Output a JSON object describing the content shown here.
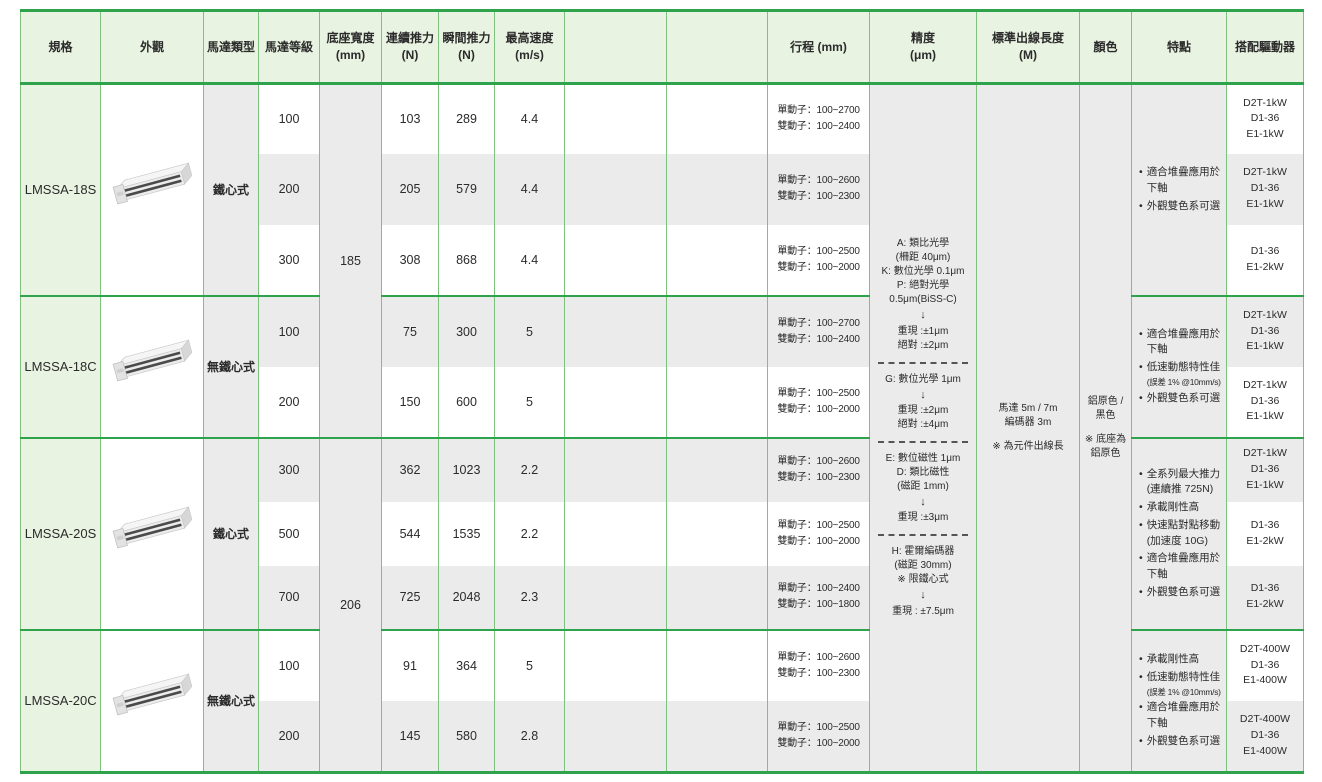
{
  "colors": {
    "header_bg": "#e9f3e2",
    "spec_bg": "#e9f3e2",
    "stripe_gray": "#ebebeb",
    "stripe_white": "#ffffff",
    "border_light_green": "#7fc27d",
    "border_strong_green": "#2ea34b",
    "text": "#2b2b2b"
  },
  "headers": [
    {
      "label": "規格",
      "sub": ""
    },
    {
      "label": "外觀",
      "sub": ""
    },
    {
      "label": "馬達類型",
      "sub": ""
    },
    {
      "label": "馬達等級",
      "sub": ""
    },
    {
      "label": "底座寬度",
      "sub": "(mm)"
    },
    {
      "label": "連續推力",
      "sub": "(N)"
    },
    {
      "label": "瞬間推力",
      "sub": "(N)"
    },
    {
      "label": "最高速度",
      "sub": "(m/s)"
    },
    {
      "label": "",
      "sub": ""
    },
    {
      "label": "",
      "sub": ""
    },
    {
      "label": "行程 (mm)",
      "sub": ""
    },
    {
      "label": "精度",
      "sub": "(μm)"
    },
    {
      "label": "標準出線長度",
      "sub": "(M)"
    },
    {
      "label": "顏色",
      "sub": ""
    },
    {
      "label": "特點",
      "sub": ""
    },
    {
      "label": "搭配驅動器",
      "sub": ""
    }
  ],
  "base_width_spans": [
    {
      "value": "185",
      "rows": 5
    },
    {
      "value": "206",
      "rows": 5
    }
  ],
  "precision": {
    "blocks": [
      {
        "lines": [
          "A: 類比光學",
          "(柵距 40μm)",
          "K: 數位光學 0.1μm",
          "P: 絕對光學",
          "0.5μm(BiSS-C)",
          "↓",
          "重現 :±1μm",
          "絕對 :±2μm"
        ]
      },
      {
        "lines": [
          "G: 數位光學 1μm",
          "↓",
          "重現 :±2μm",
          "絕對 :±4μm"
        ]
      },
      {
        "lines": [
          "E: 數位磁性 1μm",
          "D: 類比磁性",
          "(磁距 1mm)",
          "↓",
          "重現 :±3μm"
        ]
      },
      {
        "lines": [
          "H: 霍爾編碼器",
          "(磁距 30mm)",
          "※ 限鐵心式",
          "↓",
          "重現 : ±7.5μm"
        ]
      }
    ]
  },
  "cable_length": {
    "lines": [
      "馬達 5m / 7m",
      "編碼器 3m"
    ],
    "note": "※ 為元件出線長"
  },
  "color_column": {
    "lines": [
      "鋁原色 /",
      "黑色"
    ],
    "note": "※ 底座為鋁原色"
  },
  "groups": [
    {
      "model": "LMSSA-18S",
      "motor_type": "鐵心式",
      "appearance": "linear-stage-product-photo",
      "features": [
        {
          "text": "適合堆疊應用於下軸"
        },
        {
          "text": "外觀雙色系可選"
        }
      ],
      "rows": [
        {
          "grade": "100",
          "continuous": "103",
          "instant": "289",
          "speed": "4.4",
          "stroke": [
            "單動子：100~2700",
            "雙動子：100~2400"
          ],
          "drivers": [
            "D2T-1kW",
            "D1-36",
            "E1-1kW"
          ]
        },
        {
          "grade": "200",
          "continuous": "205",
          "instant": "579",
          "speed": "4.4",
          "stroke": [
            "單動子：100~2600",
            "雙動子：100~2300"
          ],
          "drivers": [
            "D2T-1kW",
            "D1-36",
            "E1-1kW"
          ]
        },
        {
          "grade": "300",
          "continuous": "308",
          "instant": "868",
          "speed": "4.4",
          "stroke": [
            "單動子：100~2500",
            "雙動子：100~2000"
          ],
          "drivers": [
            "D1-36",
            "E1-2kW"
          ]
        }
      ]
    },
    {
      "model": "LMSSA-18C",
      "motor_type": "無鐵心式",
      "appearance": "linear-stage-product-photo",
      "features": [
        {
          "text": "適合堆疊應用於下軸"
        },
        {
          "text": "低速動態特性佳",
          "note": "(誤差 1% @10mm/s)"
        },
        {
          "text": "外觀雙色系可選"
        }
      ],
      "rows": [
        {
          "grade": "100",
          "continuous": "75",
          "instant": "300",
          "speed": "5",
          "stroke": [
            "單動子：100~2700",
            "雙動子：100~2400"
          ],
          "drivers": [
            "D2T-1kW",
            "D1-36",
            "E1-1kW"
          ]
        },
        {
          "grade": "200",
          "continuous": "150",
          "instant": "600",
          "speed": "5",
          "stroke": [
            "單動子：100~2500",
            "雙動子：100~2000"
          ],
          "drivers": [
            "D2T-1kW",
            "D1-36",
            "E1-1kW"
          ]
        }
      ]
    },
    {
      "model": "LMSSA-20S",
      "motor_type": "鐵心式",
      "appearance": "linear-stage-product-photo",
      "features": [
        {
          "text": "全系列最大推力 (連續推 725N)"
        },
        {
          "text": "承載剛性高"
        },
        {
          "text": "快速點對點移動 (加速度 10G)"
        },
        {
          "text": "適合堆疊應用於下軸"
        },
        {
          "text": "外觀雙色系可選"
        }
      ],
      "rows": [
        {
          "grade": "300",
          "continuous": "362",
          "instant": "1023",
          "speed": "2.2",
          "stroke": [
            "單動子：100~2600",
            "雙動子：100~2300"
          ],
          "drivers": [
            "D2T-1kW",
            "D1-36",
            "E1-1kW"
          ]
        },
        {
          "grade": "500",
          "continuous": "544",
          "instant": "1535",
          "speed": "2.2",
          "stroke": [
            "單動子：100~2500",
            "雙動子：100~2000"
          ],
          "drivers": [
            "D1-36",
            "E1-2kW"
          ]
        },
        {
          "grade": "700",
          "continuous": "725",
          "instant": "2048",
          "speed": "2.3",
          "stroke": [
            "單動子：100~2400",
            "雙動子：100~1800"
          ],
          "drivers": [
            "D1-36",
            "E1-2kW"
          ]
        }
      ]
    },
    {
      "model": "LMSSA-20C",
      "motor_type": "無鐵心式",
      "appearance": "linear-stage-product-photo",
      "features": [
        {
          "text": "承載剛性高"
        },
        {
          "text": "低速動態特性佳",
          "note": "(誤差 1% @10mm/s)"
        },
        {
          "text": "適合堆疊應用於下軸"
        },
        {
          "text": "外觀雙色系可選"
        }
      ],
      "rows": [
        {
          "grade": "100",
          "continuous": "91",
          "instant": "364",
          "speed": "5",
          "stroke": [
            "單動子：100~2600",
            "雙動子：100~2300"
          ],
          "drivers": [
            "D2T-400W",
            "D1-36",
            "E1-400W"
          ]
        },
        {
          "grade": "200",
          "continuous": "145",
          "instant": "580",
          "speed": "2.8",
          "stroke": [
            "單動子：100~2500",
            "雙動子：100~2000"
          ],
          "drivers": [
            "D2T-400W",
            "D1-36",
            "E1-400W"
          ]
        }
      ]
    }
  ]
}
